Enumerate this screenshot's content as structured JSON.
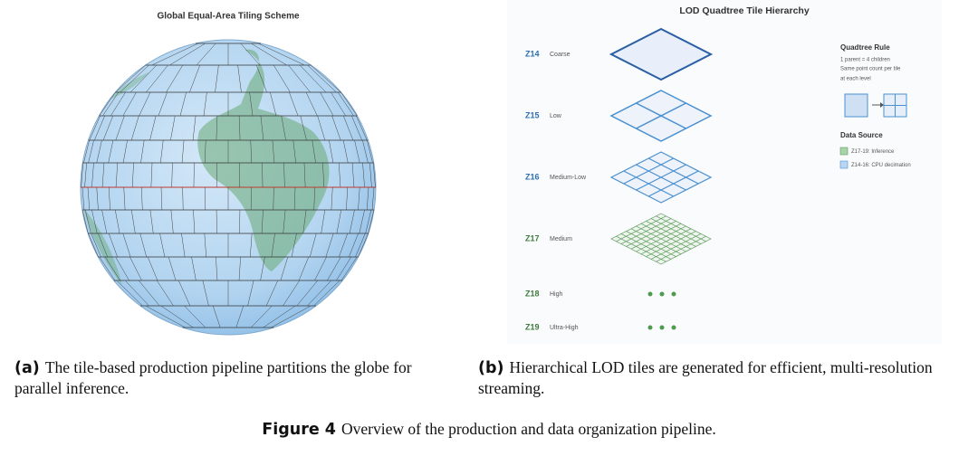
{
  "panel_a": {
    "title": "Global Equal-Area Tiling Scheme"
  },
  "panel_b": {
    "title": "LOD Quadtree Tile Hierarchy",
    "levels": [
      {
        "zoom": "Z14",
        "label": "Coarse"
      },
      {
        "zoom": "Z15",
        "label": "Low"
      },
      {
        "zoom": "Z16",
        "label": "Medium-Low"
      },
      {
        "zoom": "Z17",
        "label": "Medium"
      },
      {
        "zoom": "Z18",
        "label": "High"
      },
      {
        "zoom": "Z19",
        "label": "Ultra-High"
      }
    ],
    "rule": {
      "title": "Quadtree Rule",
      "lines": [
        "1 parent = 4 children",
        "Same point count per tile",
        "at each level"
      ]
    },
    "source": {
      "title": "Data Source",
      "items": [
        "Z17-19: Inference",
        "Z14-16: CPU decimation"
      ]
    }
  },
  "captions": {
    "a": {
      "tag": "(a)",
      "text": "The tile-based production pipeline partitions the globe for parallel inference."
    },
    "b": {
      "tag": "(b)",
      "text": "Hierarchical LOD tiles are generated for efficient, multi-resolution streaming."
    }
  },
  "figure": {
    "tag": "Figure 4",
    "text": "Overview of the production and data organization pipeline."
  }
}
